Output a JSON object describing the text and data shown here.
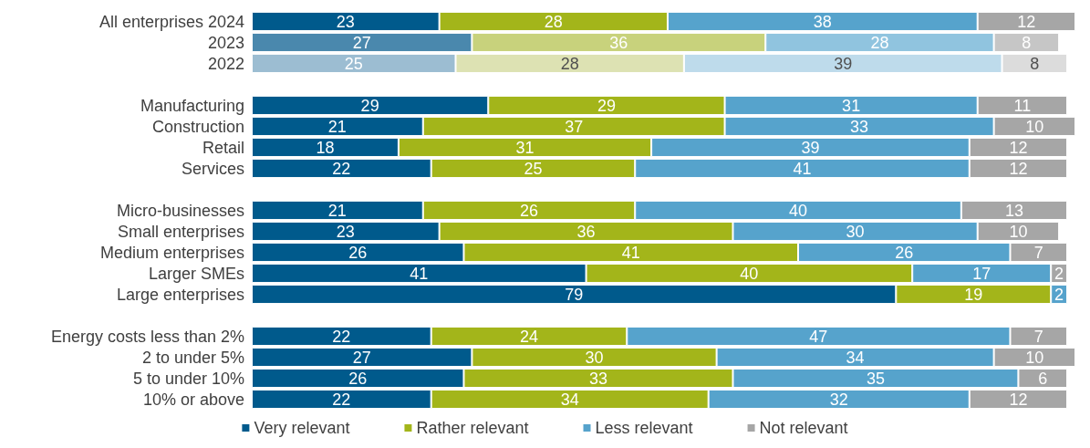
{
  "chart_data": {
    "type": "bar",
    "orientation": "horizontal",
    "stacked": true,
    "data_labels": true,
    "legend": "bottom",
    "categories": [
      "All enterprises 2024",
      "2023",
      "2022",
      null,
      "Manufacturing",
      "Construction",
      "Retail",
      "Services",
      null,
      "Micro-businesses",
      "Small enterprises",
      "Medium enterprises",
      "Larger SMEs",
      "Large enterprises",
      null,
      "Energy costs less than 2%",
      "2 to under 5%",
      "5 to under 10%",
      "10% or above"
    ],
    "series": [
      {
        "name": "Very relevant",
        "color": "#005a8c",
        "colors": [
          "#005a8c",
          "#4a88ad",
          "#9cbdd2",
          null,
          "#005a8c",
          "#005a8c",
          "#005a8c",
          "#005a8c",
          null,
          "#005a8c",
          "#005a8c",
          "#005a8c",
          "#005a8c",
          "#005a8c",
          null,
          "#005a8c",
          "#005a8c",
          "#005a8c",
          "#005a8c"
        ],
        "values": [
          23,
          27,
          25,
          null,
          29,
          21,
          18,
          22,
          null,
          21,
          23,
          26,
          41,
          79,
          null,
          22,
          27,
          26,
          22
        ]
      },
      {
        "name": "Rather relevant",
        "color": "#a3b51a",
        "colors": [
          "#a3b51a",
          "#c8d27c",
          "#dde2b3",
          null,
          "#a3b51a",
          "#a3b51a",
          "#a3b51a",
          "#a3b51a",
          null,
          "#a3b51a",
          "#a3b51a",
          "#a3b51a",
          "#a3b51a",
          "#a3b51a",
          null,
          "#a3b51a",
          "#a3b51a",
          "#a3b51a",
          "#a3b51a"
        ],
        "values": [
          28,
          36,
          28,
          null,
          29,
          37,
          31,
          25,
          null,
          26,
          36,
          41,
          40,
          19,
          null,
          24,
          30,
          33,
          34
        ]
      },
      {
        "name": "Less relevant",
        "color": "#56a3cc",
        "colors": [
          "#56a3cc",
          "#90c4df",
          "#bedbeb",
          null,
          "#56a3cc",
          "#56a3cc",
          "#56a3cc",
          "#56a3cc",
          null,
          "#56a3cc",
          "#56a3cc",
          "#56a3cc",
          "#56a3cc",
          "#56a3cc",
          null,
          "#56a3cc",
          "#56a3cc",
          "#56a3cc",
          "#56a3cc"
        ],
        "values": [
          38,
          28,
          39,
          null,
          31,
          33,
          39,
          41,
          null,
          40,
          30,
          26,
          17,
          2,
          null,
          47,
          34,
          35,
          32
        ]
      },
      {
        "name": "Not relevant",
        "color": "#a6a6a6",
        "colors": [
          "#a6a6a6",
          "#c6c6c6",
          "#dcdcdc",
          null,
          "#a6a6a6",
          "#a6a6a6",
          "#a6a6a6",
          "#a6a6a6",
          null,
          "#a6a6a6",
          "#a6a6a6",
          "#a6a6a6",
          "#a6a6a6",
          "#a6a6a6",
          null,
          "#a6a6a6",
          "#a6a6a6",
          "#a6a6a6",
          "#a6a6a6"
        ],
        "values": [
          12,
          8,
          8,
          null,
          11,
          10,
          12,
          12,
          null,
          13,
          10,
          7,
          2,
          null,
          null,
          7,
          10,
          6,
          12
        ]
      }
    ]
  }
}
